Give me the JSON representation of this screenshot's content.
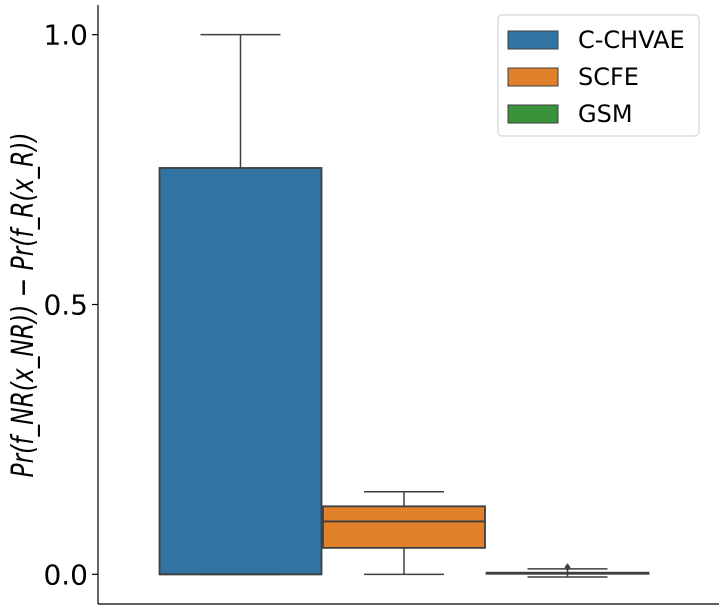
{
  "chart_data": {
    "type": "box",
    "ylabel": "Pr(f_NR(x_NR)) − Pr(f_R(x_R))",
    "ylim": [
      -0.055,
      1.055
    ],
    "yticks": [
      0.0,
      0.5,
      1.0
    ],
    "ytick_labels": [
      "0.0",
      "0.5",
      "1.0"
    ],
    "legend_position": "top-right",
    "series": [
      {
        "name": "C-CHVAE",
        "color": "#3274a1",
        "whisker_low": 0.0,
        "q1": 0.0,
        "median": 0.0,
        "q3": 0.753,
        "whisker_high": 1.0,
        "outliers": []
      },
      {
        "name": "SCFE",
        "color": "#e1812c",
        "whisker_low": 0.0,
        "q1": 0.049,
        "median": 0.098,
        "q3": 0.126,
        "whisker_high": 0.153,
        "outliers": []
      },
      {
        "name": "GSM",
        "color": "#3a923a",
        "whisker_low": -0.005,
        "q1": 0.001,
        "median": 0.002,
        "q3": 0.003,
        "whisker_high": 0.01,
        "outliers": [
          0.013
        ]
      }
    ]
  }
}
